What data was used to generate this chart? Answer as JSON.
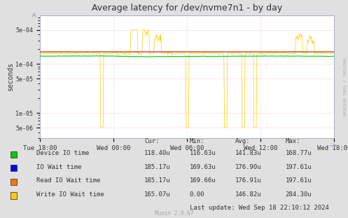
{
  "title": "Average latency for /dev/nvme7n1 - by day",
  "ylabel": "seconds",
  "background_color": "#e0e0e0",
  "plot_background": "#ffffff",
  "grid_color_h": "#ffaaaa",
  "grid_color_v": "#ccccdd",
  "ylim_log": [
    3e-06,
    0.001
  ],
  "yticks": [
    5e-06,
    1e-05,
    5e-05,
    0.0001,
    0.0005
  ],
  "ytick_labels": [
    "5e-06",
    "1e-05",
    "5e-05",
    "1e-04",
    "5e-04"
  ],
  "xtick_labels": [
    "Tue 18:00",
    "Wed 00:00",
    "Wed 06:00",
    "Wed 12:00",
    "Wed 18:00"
  ],
  "legend_colors": [
    "#00cc00",
    "#0000ff",
    "#ff7700",
    "#ffcc00"
  ],
  "legend_rows": [
    [
      "Device IO time",
      "118.40u",
      "116.63u",
      "141.83u",
      "168.77u"
    ],
    [
      "IO Wait time",
      "185.17u",
      "169.63u",
      "176.90u",
      "197.61u"
    ],
    [
      "Read IO Wait time",
      "185.17u",
      "169.66u",
      "176.91u",
      "197.61u"
    ],
    [
      "Write IO Wait time",
      "165.07u",
      "0.00",
      "146.82u",
      "284.30u"
    ]
  ],
  "last_update": "Last update: Wed Sep 18 22:10:12 2024",
  "munin_version": "Munin 2.0.67",
  "watermark": "RRDTOOL / TOBI OETIKER",
  "n_points": 500,
  "green_base": 0.000145,
  "orange_base": 0.000178
}
